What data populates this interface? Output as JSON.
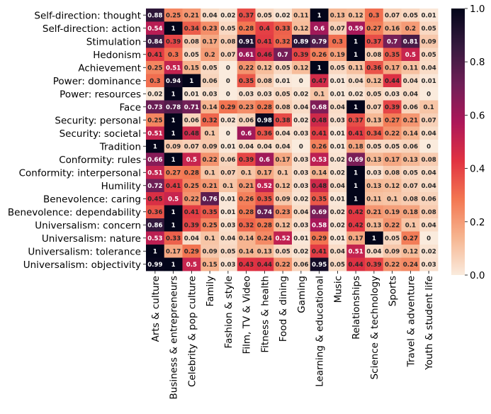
{
  "chart_data": {
    "type": "heatmap",
    "title": "",
    "xlabel": "",
    "ylabel": "",
    "rows": [
      "Self-direction: thought",
      "Self-direction: action",
      "Stimulation",
      "Hedonism",
      "Achievement",
      "Power: dominance",
      "Power: resources",
      "Face",
      "Security: personal",
      "Security: societal",
      "Tradition",
      "Conformity: rules",
      "Conformity: interpersonal",
      "Humility",
      "Benevolence: caring",
      "Benevolence: dependability",
      "Universalism: concern",
      "Universalism: nature",
      "Universalism: tolerance",
      "Universalism: objectivity"
    ],
    "columns": [
      "Arts & culture",
      "Business & entrepreneurs",
      "Celebrity & pop culture",
      "Family",
      "Fashion & style",
      "Film, TV & Video",
      "Fitness & health",
      "Food & dining",
      "Gaming",
      "Learning & educational",
      "Music",
      "Relationships",
      "Science & technology",
      "Sports",
      "Travel & adventure",
      "Youth & student life"
    ],
    "values": [
      [
        0.88,
        0.25,
        0.21,
        0.04,
        0.02,
        0.37,
        0.05,
        0.02,
        0.11,
        1,
        0.13,
        0.12,
        0.3,
        0.07,
        0.05,
        0.01
      ],
      [
        0.54,
        1,
        0.34,
        0.23,
        0.05,
        0.28,
        0.4,
        0.33,
        0.12,
        0.6,
        0.07,
        0.59,
        0.27,
        0.16,
        0.2,
        0.05
      ],
      [
        0.84,
        0.39,
        0.08,
        0.17,
        0.08,
        0.91,
        0.41,
        0.32,
        0.89,
        0.79,
        0.3,
        1,
        0.37,
        0.7,
        0.81,
        0.09
      ],
      [
        0.41,
        0.3,
        0.05,
        0.2,
        0.07,
        0.61,
        0.46,
        0.7,
        0.39,
        0.26,
        0.19,
        1,
        0.08,
        0.35,
        0.5,
        0.05
      ],
      [
        0.25,
        0.51,
        0.15,
        0.05,
        0,
        0.22,
        0.12,
        0.05,
        0.12,
        1,
        0.05,
        0.11,
        0.36,
        0.17,
        0.11,
        0.04
      ],
      [
        0.3,
        0.94,
        1,
        0.06,
        0,
        0.35,
        0.08,
        0.01,
        0,
        0.47,
        0.01,
        0.04,
        0.12,
        0.44,
        0.04,
        0.01
      ],
      [
        0.02,
        1,
        0.01,
        0.03,
        0,
        0.03,
        0.03,
        0.05,
        0.02,
        0.1,
        0.01,
        0.02,
        0.05,
        0.03,
        0.04,
        0
      ],
      [
        0.73,
        0.78,
        0.71,
        0.14,
        0.29,
        0.23,
        0.28,
        0.08,
        0.04,
        0.68,
        0.04,
        1,
        0.07,
        0.39,
        0.06,
        0.1
      ],
      [
        0.25,
        1,
        0.06,
        0.32,
        0.02,
        0.06,
        0.98,
        0.38,
        0.02,
        0.48,
        0.03,
        0.37,
        0.13,
        0.27,
        0.21,
        0.07
      ],
      [
        0.51,
        1,
        0.48,
        0.1,
        0,
        0.6,
        0.36,
        0.04,
        0.03,
        0.41,
        0.01,
        0.41,
        0.34,
        0.22,
        0.14,
        0.04
      ],
      [
        1,
        0.09,
        0.07,
        0.09,
        0.01,
        0.04,
        0.04,
        0.04,
        0,
        0.26,
        0.01,
        0.18,
        0.05,
        0.05,
        0.06,
        0
      ],
      [
        0.66,
        1,
        0.5,
        0.22,
        0.06,
        0.39,
        0.6,
        0.17,
        0.03,
        0.53,
        0.02,
        0.69,
        0.13,
        0.17,
        0.13,
        0.08
      ],
      [
        0.51,
        0.27,
        0.28,
        0.1,
        0.07,
        0.1,
        0.17,
        0.1,
        0.03,
        0.14,
        0.02,
        1,
        0.03,
        0.08,
        0.05,
        0.04
      ],
      [
        0.72,
        0.41,
        0.25,
        0.21,
        0.1,
        0.21,
        0.52,
        0.12,
        0.03,
        0.48,
        0.04,
        1,
        0.13,
        0.12,
        0.07,
        0.04
      ],
      [
        0.45,
        0.5,
        0.22,
        0.76,
        0.01,
        0.26,
        0.35,
        0.09,
        0.02,
        0.35,
        0.01,
        1,
        0.11,
        0.1,
        0.08,
        0.06
      ],
      [
        0.36,
        1,
        0.41,
        0.35,
        0.01,
        0.28,
        0.74,
        0.23,
        0.04,
        0.69,
        0.02,
        0.42,
        0.21,
        0.19,
        0.18,
        0.08
      ],
      [
        0.86,
        1,
        0.39,
        0.25,
        0.03,
        0.32,
        0.28,
        0.12,
        0.03,
        0.58,
        0.02,
        0.42,
        0.13,
        0.22,
        0.1,
        0.04
      ],
      [
        0.53,
        0.33,
        0.04,
        0.1,
        0.04,
        0.14,
        0.24,
        0.52,
        0.01,
        0.29,
        0.01,
        0.17,
        1,
        0.05,
        0.27,
        0
      ],
      [
        1,
        0.17,
        0.29,
        0.09,
        0.05,
        0.14,
        0.13,
        0.05,
        0.02,
        0.41,
        0.04,
        0.51,
        0.04,
        0.09,
        0.12,
        0.02
      ],
      [
        0.99,
        1,
        0.5,
        0.15,
        0.03,
        0.43,
        0.44,
        0.22,
        0.06,
        0.95,
        0.05,
        0.44,
        0.39,
        0.22,
        0.24,
        0.03
      ]
    ],
    "colorbar": {
      "min": 0,
      "max": 1,
      "ticks": [
        "0.0",
        "0.2",
        "0.4",
        "0.6",
        "0.8",
        "1.0"
      ]
    },
    "colormap": [
      "#faebdd",
      "#f6b48f",
      "#f37651",
      "#e13342",
      "#ad1759",
      "#701f57",
      "#35193e",
      "#03051a"
    ],
    "annot": true
  }
}
